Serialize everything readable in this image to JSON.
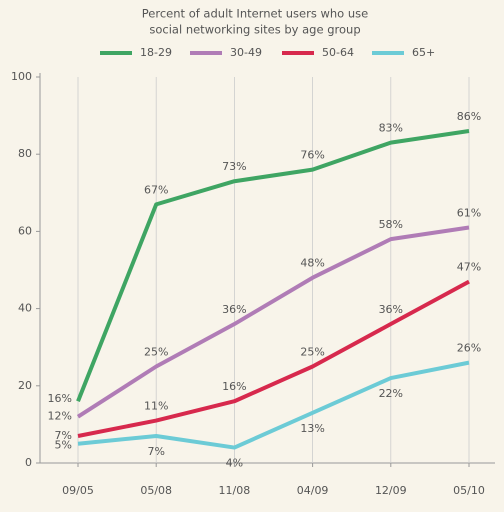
{
  "chart_data": {
    "type": "line",
    "title": "Percent of adult Internet users who use",
    "subtitle": "social networking sites by age group",
    "categories": [
      "09/05",
      "05/08",
      "11/08",
      "04/09",
      "12/09",
      "05/10"
    ],
    "series": [
      {
        "name": "18-29",
        "color": "#3fa563",
        "values": [
          16,
          67,
          73,
          76,
          83,
          86
        ],
        "value_labels": [
          "16%",
          "67%",
          "73%",
          "76%",
          "83%",
          "86%"
        ]
      },
      {
        "name": "30-49",
        "color": "#b07cb6",
        "values": [
          12,
          25,
          36,
          48,
          58,
          61
        ],
        "value_labels": [
          "12%",
          "25%",
          "36%",
          "48%",
          "58%",
          "61%"
        ]
      },
      {
        "name": "50-64",
        "color": "#d7294d",
        "values": [
          7,
          11,
          16,
          25,
          36,
          47
        ],
        "value_labels": [
          "7%",
          "11%",
          "16%",
          "25%",
          "36%",
          "47%"
        ]
      },
      {
        "name": "65+",
        "color": "#6ccbd6",
        "values": [
          5,
          7,
          4,
          13,
          22,
          26
        ],
        "value_labels": [
          "5%",
          "7%",
          "4%",
          "13%",
          "22%",
          "26%"
        ]
      }
    ],
    "ylim": [
      0,
      100
    ],
    "yticks": [
      0,
      20,
      40,
      60,
      80,
      100
    ],
    "grid": true,
    "legend": "top"
  }
}
